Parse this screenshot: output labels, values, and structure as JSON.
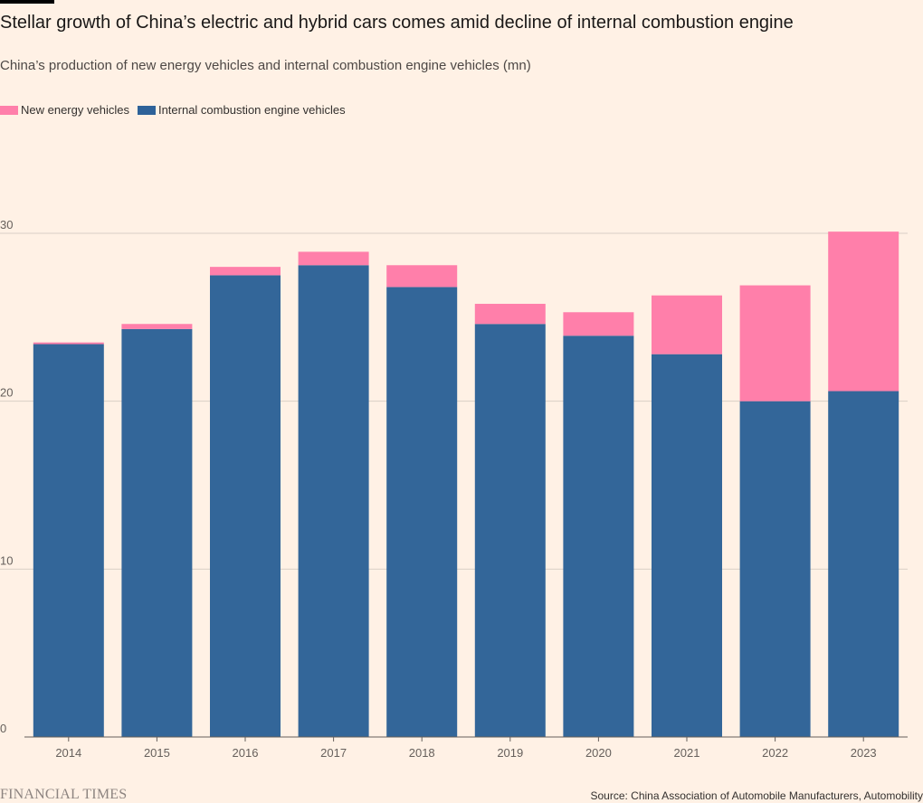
{
  "header": {
    "title": "Stellar growth of China’s electric and hybrid cars comes amid decline of internal combustion engine",
    "subtitle": "China’s production of new energy vehicles and internal combustion engine vehicles (mn)"
  },
  "legend": {
    "items": [
      {
        "label": "New energy vehicles",
        "color": "#ff7faa"
      },
      {
        "label": "Internal combustion engine vehicles",
        "color": "#2e6299"
      }
    ]
  },
  "chart_data": {
    "type": "bar",
    "stacked": true,
    "categories": [
      "2014",
      "2015",
      "2016",
      "2017",
      "2018",
      "2019",
      "2020",
      "2021",
      "2022",
      "2023"
    ],
    "series": [
      {
        "name": "Internal combustion engine vehicles",
        "color": "#336699",
        "values": [
          23.4,
          24.3,
          27.5,
          28.1,
          26.8,
          24.6,
          23.9,
          22.8,
          20.0,
          20.6
        ]
      },
      {
        "name": "New energy vehicles",
        "color": "#ff7faa",
        "values": [
          0.1,
          0.3,
          0.5,
          0.8,
          1.3,
          1.2,
          1.4,
          3.5,
          6.9,
          9.5
        ]
      }
    ],
    "ylim": [
      0,
      30
    ],
    "yticks": [
      0,
      10,
      20,
      30
    ],
    "grid": true
  },
  "footer": {
    "logo": "FINANCIAL TIMES",
    "source": "Source: China Association of Automobile Manufacturers, Automobility"
  }
}
